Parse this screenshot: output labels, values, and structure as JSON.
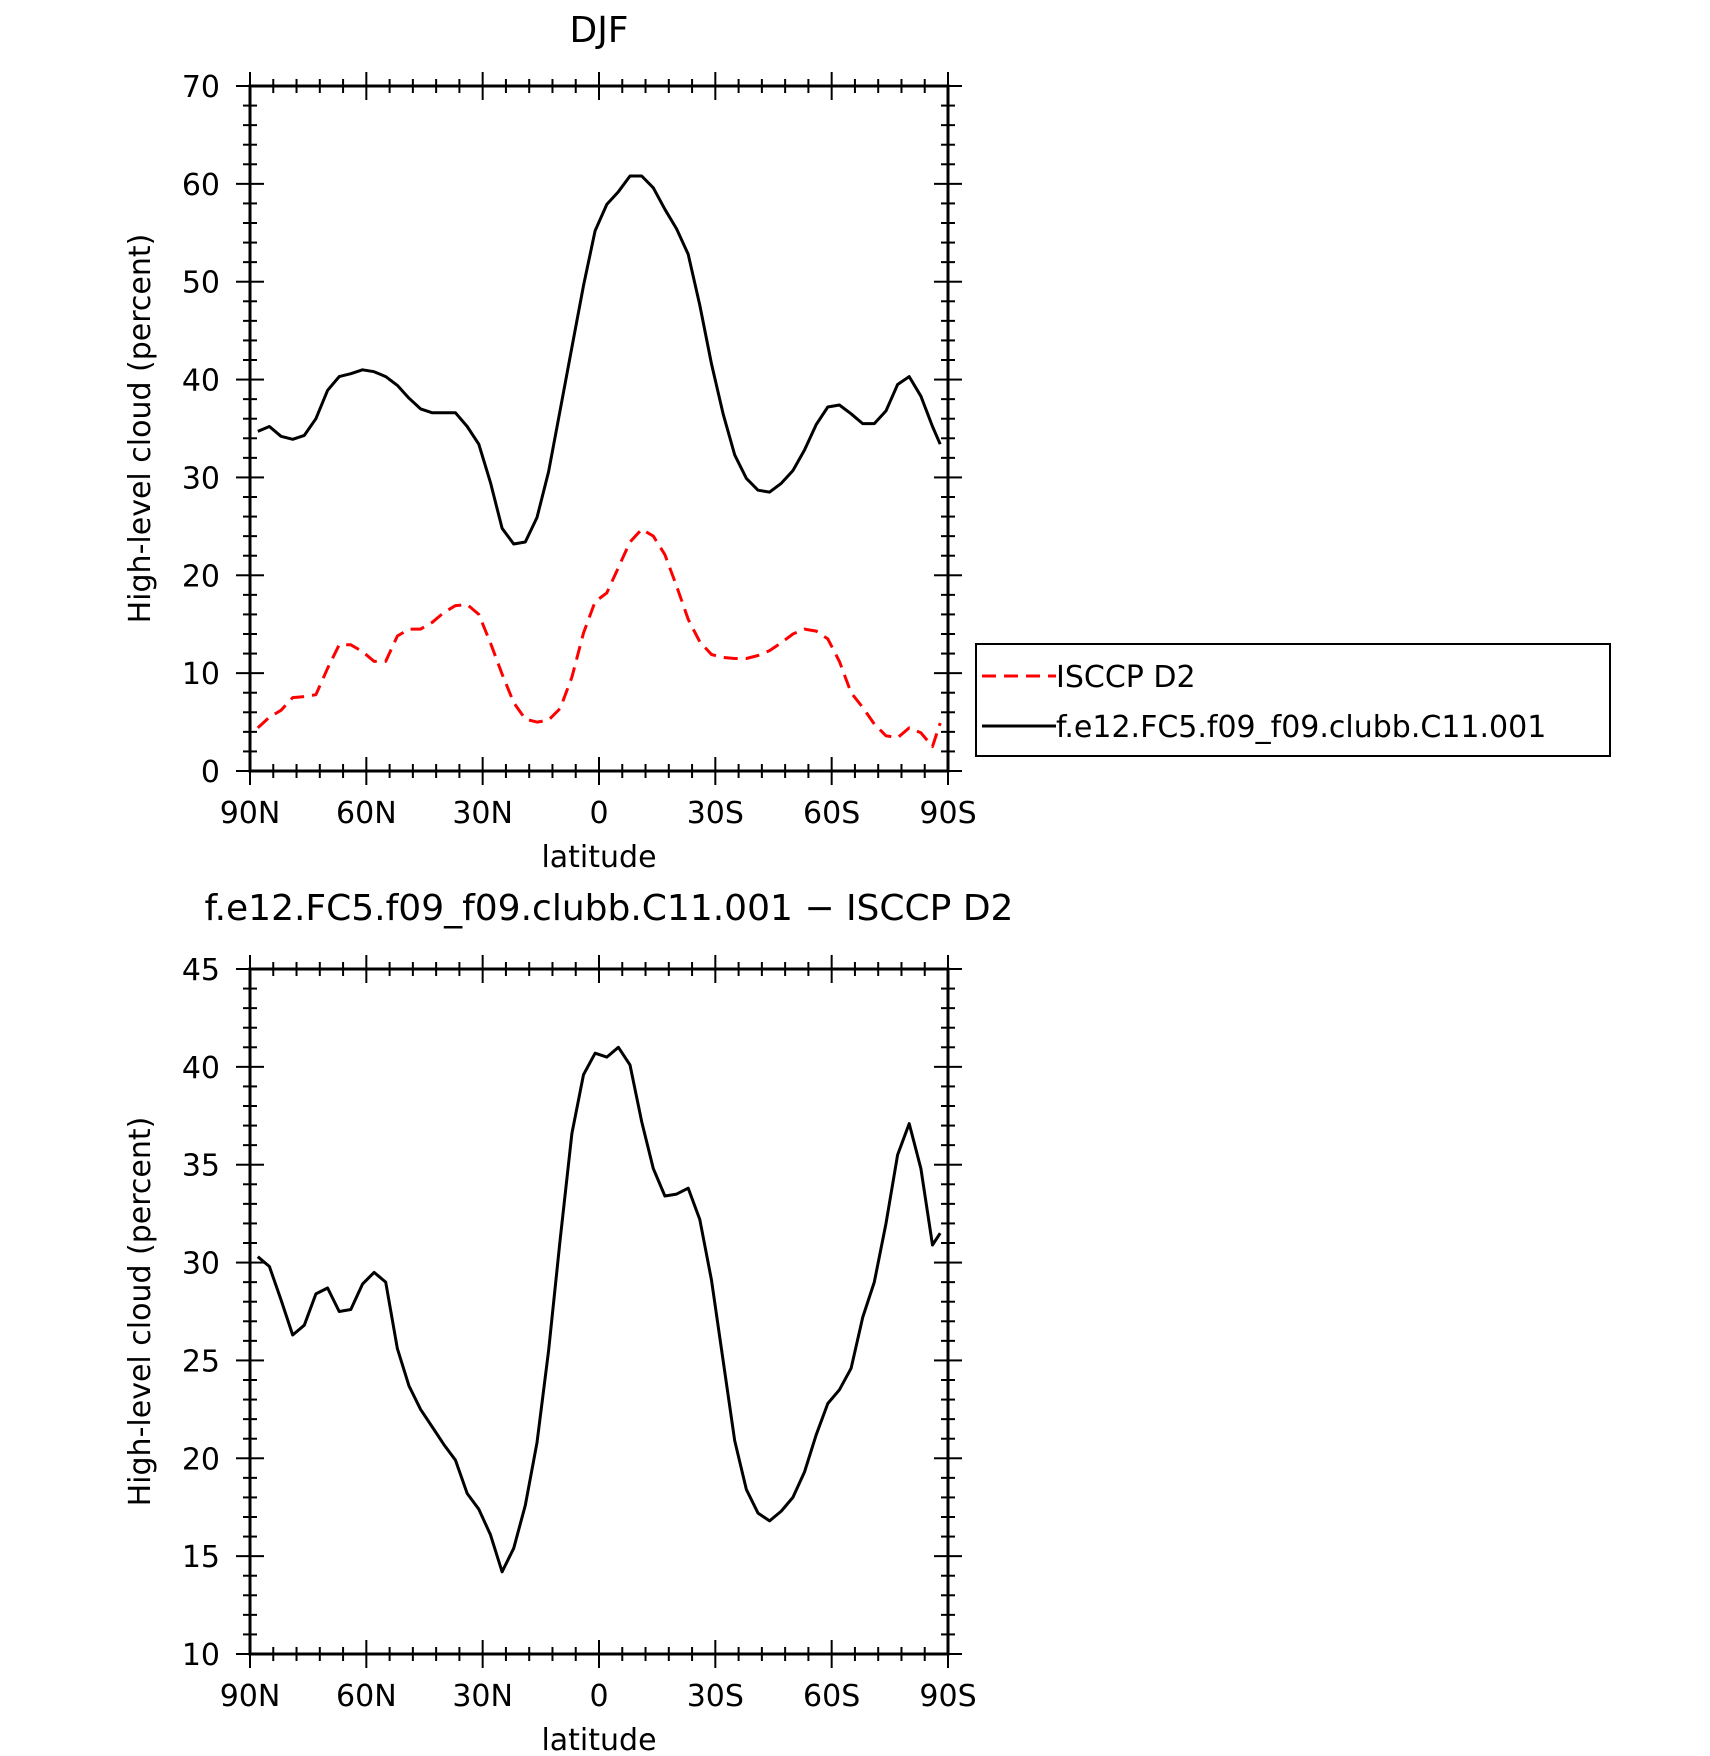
{
  "chart_data": [
    {
      "type": "line",
      "title": "DJF",
      "xlabel": "latitude",
      "ylabel": "High-level cloud (percent)",
      "xlim": [
        90,
        -90
      ],
      "ylim": [
        0,
        70
      ],
      "yticks": [
        0,
        10,
        20,
        30,
        40,
        50,
        60,
        70
      ],
      "xticks": [
        90,
        60,
        30,
        0,
        -30,
        -60,
        -90
      ],
      "xtick_labels": [
        "90N",
        "60N",
        "30N",
        "0",
        "30S",
        "60S",
        "90S"
      ],
      "grid": false,
      "legend_position": "right",
      "x": [
        88,
        85,
        82,
        79,
        76,
        73,
        70,
        67,
        64,
        61,
        58,
        55,
        52,
        49,
        46,
        43,
        40,
        37,
        34,
        31,
        28,
        25,
        22,
        19,
        16,
        13,
        10,
        7,
        4,
        1,
        -2,
        -5,
        -8,
        -11,
        -14,
        -17,
        -20,
        -23,
        -26,
        -29,
        -32,
        -35,
        -38,
        -41,
        -44,
        -47,
        -50,
        -53,
        -56,
        -59,
        -62,
        -65,
        -68,
        -71,
        -74,
        -77,
        -80,
        -83,
        -86,
        -88
      ],
      "series": [
        {
          "name": "ISCCP D2",
          "color": "#ff0000",
          "dash": "dashed",
          "values": [
            4.4,
            5.5,
            6.2,
            7.5,
            7.6,
            7.8,
            10.5,
            12.9,
            12.9,
            12.2,
            11.2,
            11.2,
            13.8,
            14.5,
            14.5,
            15.2,
            16.2,
            16.9,
            17.0,
            16.0,
            13.1,
            9.9,
            7.0,
            5.3,
            5.0,
            5.2,
            6.4,
            9.6,
            14.1,
            17.3,
            18.2,
            20.8,
            23.4,
            24.7,
            24.0,
            22.1,
            18.9,
            15.5,
            13.2,
            11.9,
            11.6,
            11.5,
            11.5,
            11.8,
            12.3,
            13.1,
            14.0,
            14.5,
            14.3,
            13.5,
            11.2,
            8.0,
            6.5,
            4.8,
            3.6,
            3.4,
            4.4,
            3.9,
            2.5,
            4.9
          ]
        },
        {
          "name": "f.e12.FC5.f09_f09.clubb.C11.001",
          "color": "#000000",
          "dash": "solid",
          "values": [
            34.7,
            35.2,
            34.2,
            33.9,
            34.3,
            36.0,
            38.9,
            40.3,
            40.6,
            41.0,
            40.8,
            40.3,
            39.4,
            38.1,
            37.0,
            36.6,
            36.6,
            36.6,
            35.2,
            33.4,
            29.5,
            24.8,
            23.2,
            23.4,
            25.9,
            30.6,
            36.9,
            43.3,
            49.6,
            55.2,
            57.9,
            59.2,
            60.8,
            60.8,
            59.6,
            57.4,
            55.4,
            52.8,
            47.6,
            41.6,
            36.5,
            32.3,
            29.9,
            28.7,
            28.5,
            29.4,
            30.7,
            32.8,
            35.4,
            37.2,
            37.4,
            36.5,
            35.5,
            35.5,
            36.8,
            39.5,
            40.3,
            38.3,
            35.2,
            33.4
          ]
        }
      ]
    },
    {
      "type": "line",
      "title": "f.e12.FC5.f09_f09.clubb.C11.001 − ISCCP D2",
      "xlabel": "latitude",
      "ylabel": "High-level cloud (percent)",
      "xlim": [
        90,
        -90
      ],
      "ylim": [
        10,
        45
      ],
      "yticks": [
        10,
        15,
        20,
        25,
        30,
        35,
        40,
        45
      ],
      "xticks": [
        90,
        60,
        30,
        0,
        -30,
        -60,
        -90
      ],
      "xtick_labels": [
        "90N",
        "60N",
        "30N",
        "0",
        "30S",
        "60S",
        "90S"
      ],
      "grid": false,
      "x": [
        88,
        85,
        82,
        79,
        76,
        73,
        70,
        67,
        64,
        61,
        58,
        55,
        52,
        49,
        46,
        43,
        40,
        37,
        34,
        31,
        28,
        25,
        22,
        19,
        16,
        13,
        10,
        7,
        4,
        1,
        -2,
        -5,
        -8,
        -11,
        -14,
        -17,
        -20,
        -23,
        -26,
        -29,
        -32,
        -35,
        -38,
        -41,
        -44,
        -47,
        -50,
        -53,
        -56,
        -59,
        -62,
        -65,
        -68,
        -71,
        -74,
        -77,
        -80,
        -83,
        -86,
        -88
      ],
      "series": [
        {
          "color": "#000000",
          "dash": "solid",
          "values": [
            30.3,
            29.8,
            28.1,
            26.3,
            26.8,
            28.4,
            28.7,
            27.5,
            27.6,
            28.9,
            29.5,
            29.0,
            25.6,
            23.7,
            22.5,
            21.6,
            20.7,
            19.9,
            18.2,
            17.4,
            16.1,
            14.2,
            15.4,
            17.6,
            20.8,
            25.5,
            31.2,
            36.6,
            39.6,
            40.7,
            40.5,
            41.0,
            40.1,
            37.2,
            34.8,
            33.4,
            33.5,
            33.8,
            32.2,
            29.1,
            25.0,
            20.9,
            18.4,
            17.2,
            16.8,
            17.3,
            18.0,
            19.3,
            21.2,
            22.8,
            23.5,
            24.6,
            27.2,
            29.0,
            32.0,
            35.5,
            37.1,
            34.8,
            30.9,
            31.5
          ]
        }
      ]
    }
  ]
}
